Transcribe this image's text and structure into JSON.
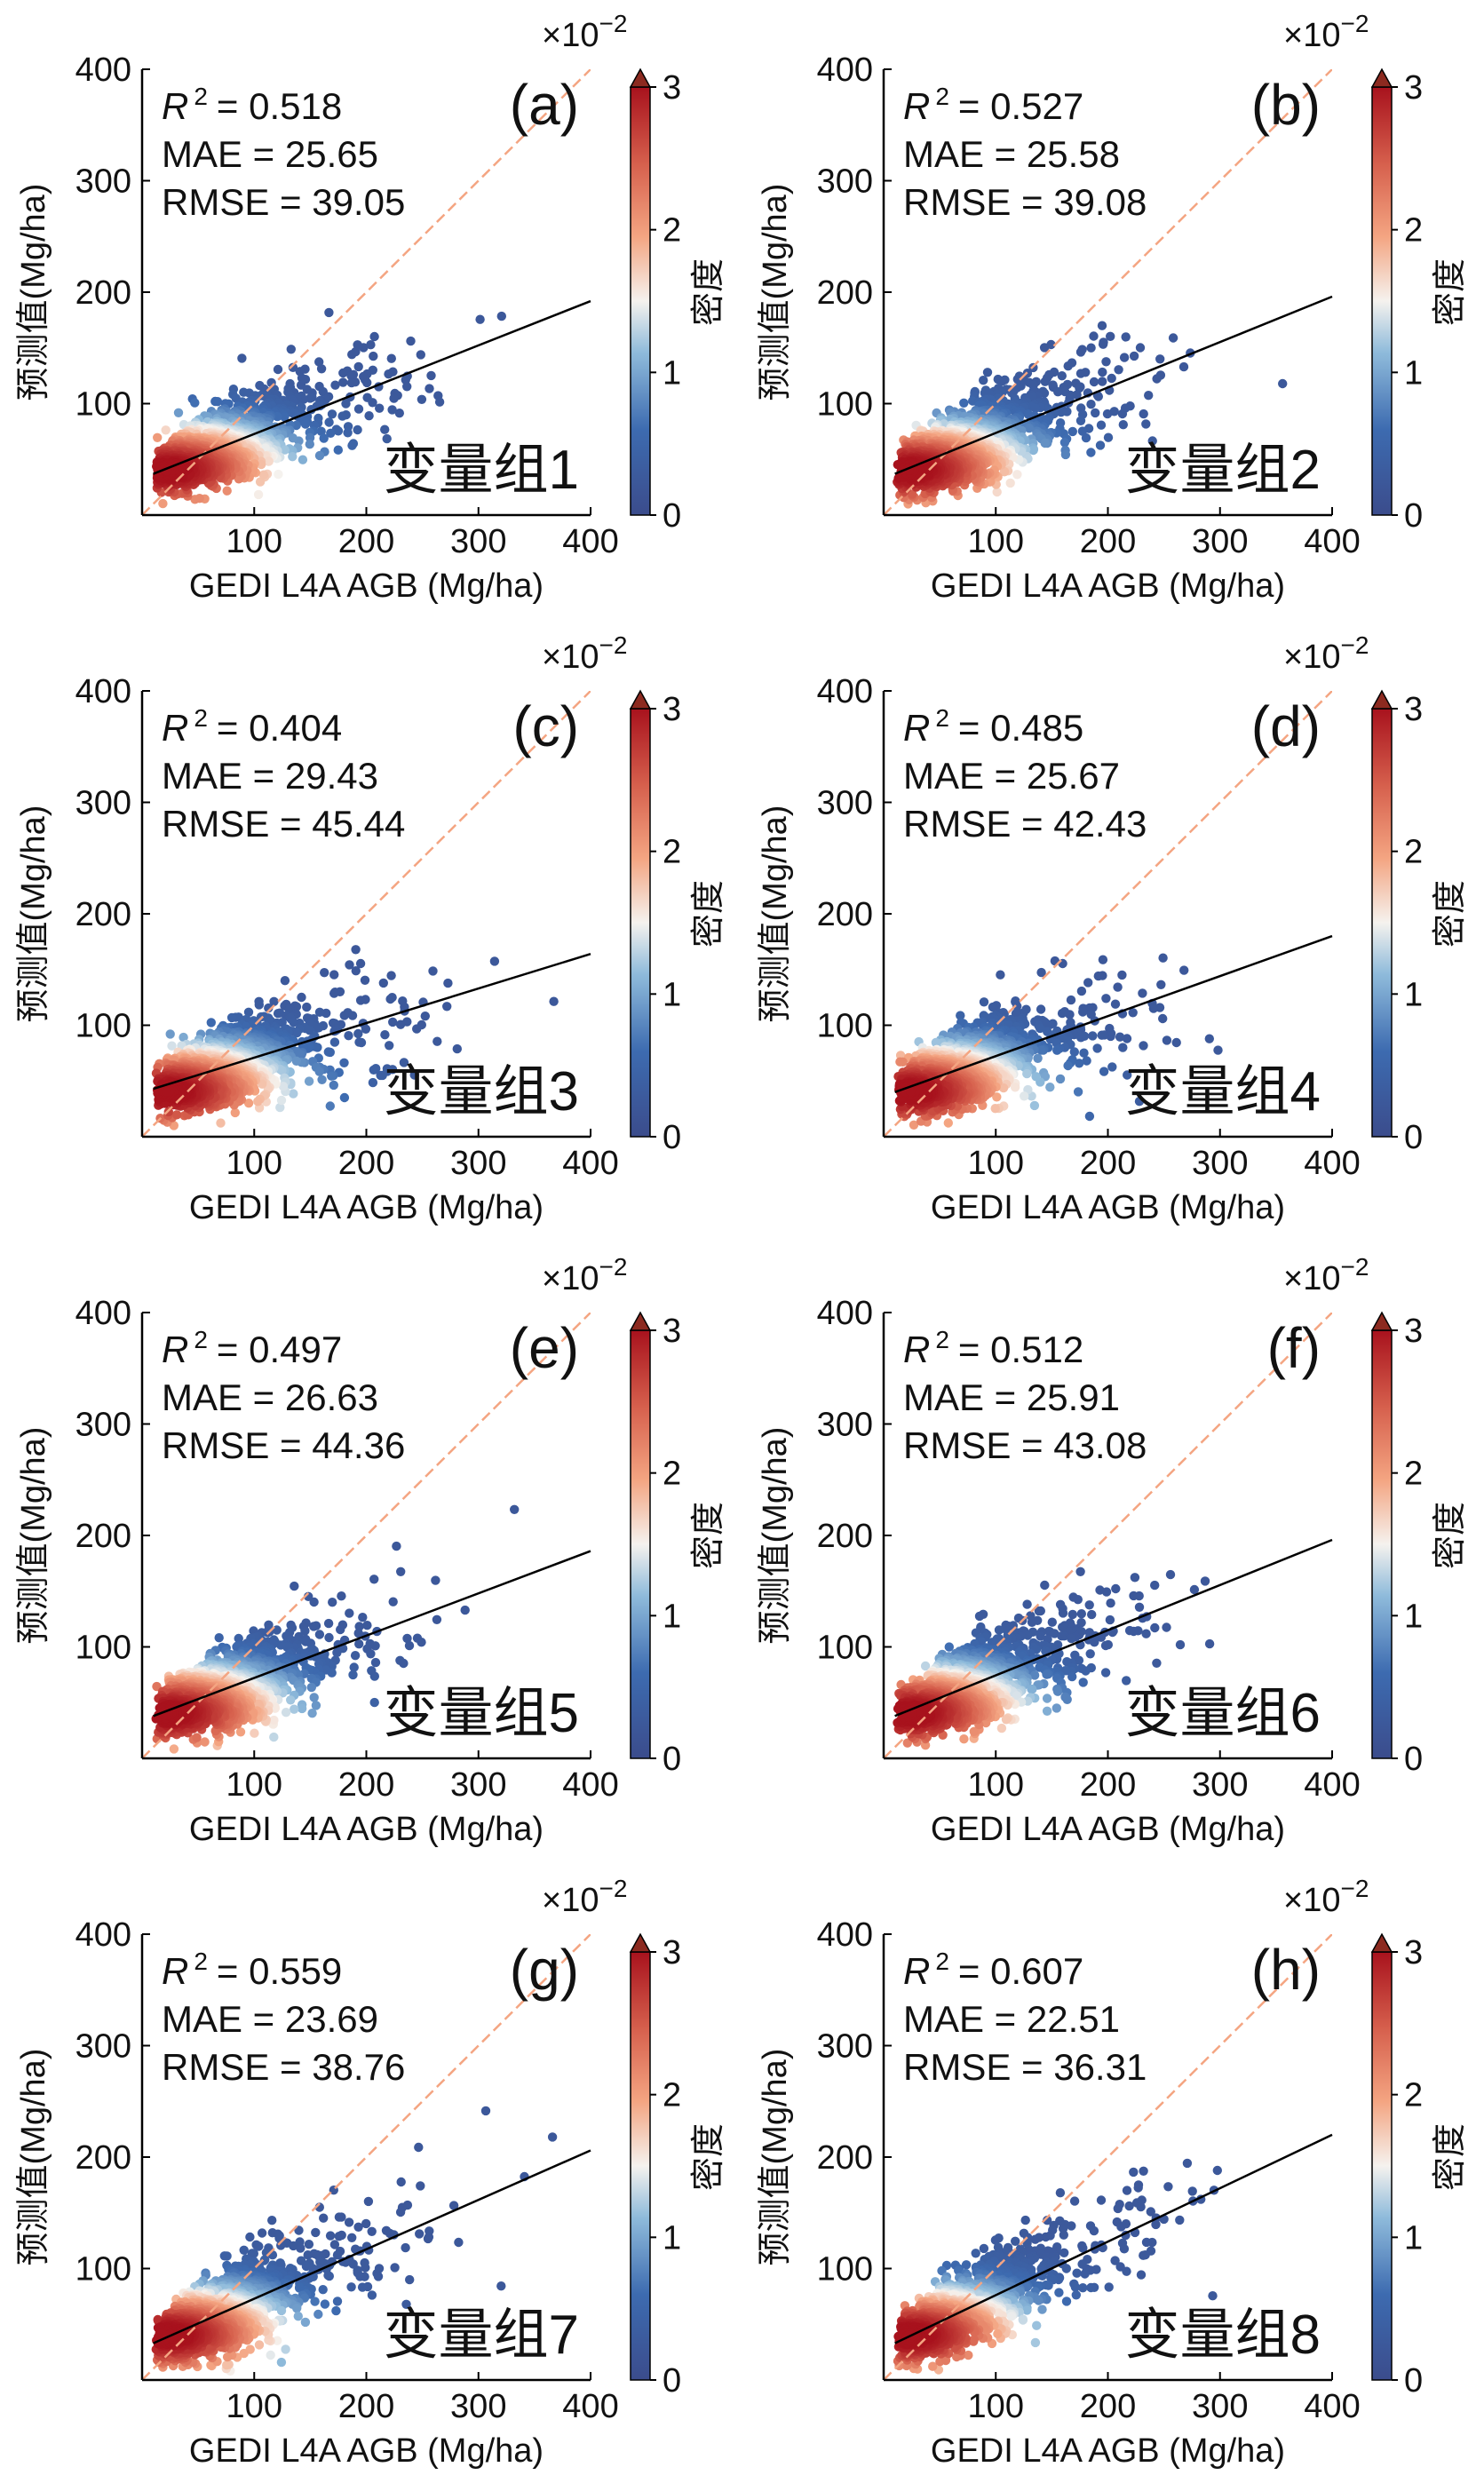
{
  "figure": {
    "scale_exponent": "×10",
    "scale_exponent_power": "−2"
  },
  "colors": {
    "point_low": "#3b4c8c",
    "point_mid": "#f5f2ee",
    "point_high": "#a8121d",
    "identity_line": "#f4a582",
    "fit_line": "#000000"
  },
  "chart_data": [
    {
      "type": "scatter",
      "panel": "(a)",
      "group": "变量组1",
      "r2_label": "R",
      "r2_power": "2",
      "r2_value": "= 0.518",
      "mae": "MAE = 25.65",
      "rmse": "RMSE = 39.05",
      "xlabel": "GEDI  L4A  AGB (Mg/ha)",
      "ylabel": "预测值(Mg/ha)",
      "xlim": [
        0,
        400
      ],
      "ylim": [
        0,
        400
      ],
      "xticks": [
        "100",
        "200",
        "300",
        "400"
      ],
      "yticks": [
        "100",
        "200",
        "300",
        "400"
      ],
      "fit": [
        [
          10,
          37
        ],
        [
          400,
          192
        ]
      ],
      "identity": [
        [
          0,
          0
        ],
        [
          400,
          400
        ]
      ],
      "colorbar": {
        "label": "密度",
        "ticks": [
          "0",
          "1",
          "2",
          "3"
        ],
        "range": [
          0,
          3
        ],
        "exponent": -2
      }
    },
    {
      "type": "scatter",
      "panel": "(b)",
      "group": "变量组2",
      "r2_label": "R",
      "r2_power": "2",
      "r2_value": "= 0.527",
      "mae": "MAE = 25.58",
      "rmse": "RMSE = 39.08",
      "xlabel": "GEDI  L4A  AGB (Mg/ha)",
      "ylabel": "预测值(Mg/ha)",
      "xlim": [
        0,
        400
      ],
      "ylim": [
        0,
        400
      ],
      "xticks": [
        "100",
        "200",
        "300",
        "400"
      ],
      "yticks": [
        "100",
        "200",
        "300",
        "400"
      ],
      "fit": [
        [
          10,
          37
        ],
        [
          400,
          196
        ]
      ],
      "identity": [
        [
          0,
          0
        ],
        [
          400,
          400
        ]
      ],
      "colorbar": {
        "label": "密度",
        "ticks": [
          "0",
          "1",
          "2",
          "3"
        ],
        "range": [
          0,
          3
        ],
        "exponent": -2
      }
    },
    {
      "type": "scatter",
      "panel": "(c)",
      "group": "变量组3",
      "r2_label": "R",
      "r2_power": "2",
      "r2_value": "= 0.404",
      "mae": "MAE = 29.43",
      "rmse": "RMSE = 45.44",
      "xlabel": "GEDI  L4A  AGB (Mg/ha)",
      "ylabel": "预测值(Mg/ha)",
      "xlim": [
        0,
        400
      ],
      "ylim": [
        0,
        400
      ],
      "xticks": [
        "100",
        "200",
        "300",
        "400"
      ],
      "yticks": [
        "100",
        "200",
        "300",
        "400"
      ],
      "fit": [
        [
          10,
          43
        ],
        [
          400,
          164
        ]
      ],
      "identity": [
        [
          0,
          0
        ],
        [
          400,
          400
        ]
      ],
      "colorbar": {
        "label": "密度",
        "ticks": [
          "0",
          "1",
          "2",
          "3"
        ],
        "range": [
          0,
          3
        ],
        "exponent": -2
      }
    },
    {
      "type": "scatter",
      "panel": "(d)",
      "group": "变量组4",
      "r2_label": "R",
      "r2_power": "2",
      "r2_value": "= 0.485",
      "mae": "MAE = 25.67",
      "rmse": "RMSE = 42.43",
      "xlabel": "GEDI  L4A  AGB (Mg/ha)",
      "ylabel": "预测值(Mg/ha)",
      "xlim": [
        0,
        400
      ],
      "ylim": [
        0,
        400
      ],
      "xticks": [
        "100",
        "200",
        "300",
        "400"
      ],
      "yticks": [
        "100",
        "200",
        "300",
        "400"
      ],
      "fit": [
        [
          10,
          40
        ],
        [
          400,
          180
        ]
      ],
      "identity": [
        [
          0,
          0
        ],
        [
          400,
          400
        ]
      ],
      "colorbar": {
        "label": "密度",
        "ticks": [
          "0",
          "1",
          "2",
          "3"
        ],
        "range": [
          0,
          3
        ],
        "exponent": -2
      }
    },
    {
      "type": "scatter",
      "panel": "(e)",
      "group": "变量组5",
      "r2_label": "R",
      "r2_power": "2",
      "r2_value": "= 0.497",
      "mae": "MAE = 26.63",
      "rmse": "RMSE = 44.36",
      "xlabel": "GEDI  L4A  AGB (Mg/ha)",
      "ylabel": "预测值(Mg/ha)",
      "xlim": [
        0,
        400
      ],
      "ylim": [
        0,
        400
      ],
      "xticks": [
        "100",
        "200",
        "300",
        "400"
      ],
      "yticks": [
        "100",
        "200",
        "300",
        "400"
      ],
      "fit": [
        [
          10,
          38
        ],
        [
          400,
          186
        ]
      ],
      "identity": [
        [
          0,
          0
        ],
        [
          400,
          400
        ]
      ],
      "colorbar": {
        "label": "密度",
        "ticks": [
          "0",
          "1",
          "2",
          "3"
        ],
        "range": [
          0,
          3
        ],
        "exponent": -2
      }
    },
    {
      "type": "scatter",
      "panel": "(f)",
      "group": "变量组6",
      "r2_label": "R",
      "r2_power": "2",
      "r2_value": "= 0.512",
      "mae": "MAE = 25.91",
      "rmse": "RMSE = 43.08",
      "xlabel": "GEDI  L4A  AGB (Mg/ha)",
      "ylabel": "预测值(Mg/ha)",
      "xlim": [
        0,
        400
      ],
      "ylim": [
        0,
        400
      ],
      "xticks": [
        "100",
        "200",
        "300",
        "400"
      ],
      "yticks": [
        "100",
        "200",
        "300",
        "400"
      ],
      "fit": [
        [
          10,
          38
        ],
        [
          400,
          196
        ]
      ],
      "identity": [
        [
          0,
          0
        ],
        [
          400,
          400
        ]
      ],
      "colorbar": {
        "label": "密度",
        "ticks": [
          "0",
          "1",
          "2",
          "3"
        ],
        "range": [
          0,
          3
        ],
        "exponent": -2
      }
    },
    {
      "type": "scatter",
      "panel": "(g)",
      "group": "变量组7",
      "r2_label": "R",
      "r2_power": "2",
      "r2_value": "= 0.559",
      "mae": "MAE = 23.69",
      "rmse": "RMSE = 38.76",
      "xlabel": "GEDI  L4A  AGB (Mg/ha)",
      "ylabel": "预测值(Mg/ha)",
      "xlim": [
        0,
        400
      ],
      "ylim": [
        0,
        400
      ],
      "xticks": [
        "100",
        "200",
        "300",
        "400"
      ],
      "yticks": [
        "100",
        "200",
        "300",
        "400"
      ],
      "fit": [
        [
          10,
          33
        ],
        [
          400,
          206
        ]
      ],
      "identity": [
        [
          0,
          0
        ],
        [
          400,
          400
        ]
      ],
      "colorbar": {
        "label": "密度",
        "ticks": [
          "0",
          "1",
          "2",
          "3"
        ],
        "range": [
          0,
          3
        ],
        "exponent": -2
      }
    },
    {
      "type": "scatter",
      "panel": "(h)",
      "group": "变量组8",
      "r2_label": "R",
      "r2_power": "2",
      "r2_value": "= 0.607",
      "mae": "MAE = 22.51",
      "rmse": "RMSE = 36.31",
      "xlabel": "GEDI  L4A  AGB (Mg/ha)",
      "ylabel": "预测值(Mg/ha)",
      "xlim": [
        0,
        400
      ],
      "ylim": [
        0,
        400
      ],
      "xticks": [
        "100",
        "200",
        "300",
        "400"
      ],
      "yticks": [
        "100",
        "200",
        "300",
        "400"
      ],
      "fit": [
        [
          10,
          33
        ],
        [
          400,
          220
        ]
      ],
      "identity": [
        [
          0,
          0
        ],
        [
          400,
          400
        ]
      ],
      "colorbar": {
        "label": "密度",
        "ticks": [
          "0",
          "1",
          "2",
          "3"
        ],
        "range": [
          0,
          3
        ],
        "exponent": -2
      }
    }
  ]
}
